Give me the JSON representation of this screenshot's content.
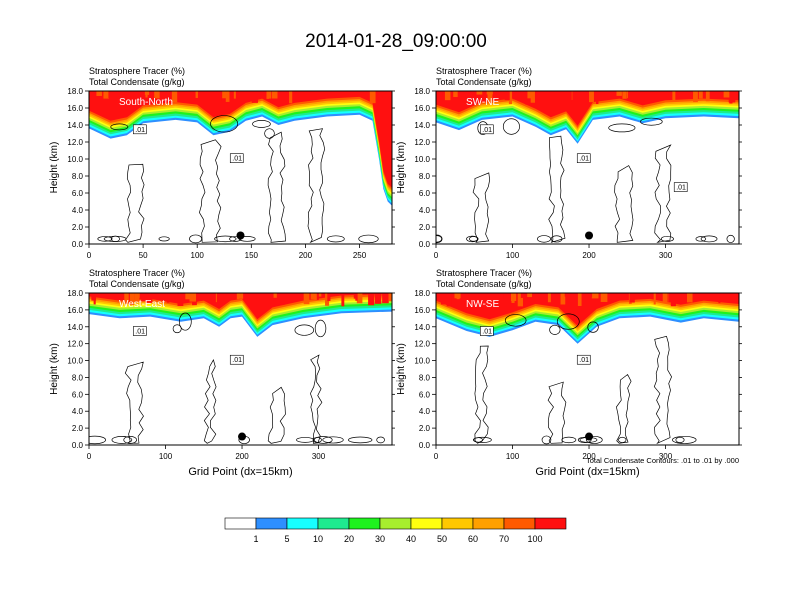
{
  "title": "2014-01-28_09:00:00",
  "colors": {
    "levels": [
      "#ffffff",
      "#2e8fff",
      "#17ffff",
      "#1eeb8f",
      "#1ef21e",
      "#a7ee2e",
      "#ffff0f",
      "#ffc800",
      "#ffa000",
      "#ff5a00",
      "#ff1010"
    ],
    "contour": "#000000"
  },
  "colorbar": {
    "labels": [
      "1",
      "5",
      "10",
      "20",
      "30",
      "40",
      "50",
      "60",
      "70",
      "100"
    ]
  },
  "chart_data": [
    {
      "type": "heatmap",
      "tracer_label": "Stratosphere Tracer   (%)",
      "condensate_label": "Total Condensate   (g/kg)",
      "panel_label": "South-North",
      "xlabel": "",
      "ylabel": "Height (km)",
      "xlim": [
        0,
        280
      ],
      "ylim": [
        0,
        18
      ],
      "xticks": [
        0,
        50,
        100,
        150,
        200,
        250
      ],
      "yticks": [
        "0.0",
        "2.0",
        "4.0",
        "6.0",
        "8.0",
        "10.0",
        "12.0",
        "14.0",
        "16.0",
        "18.0"
      ],
      "contour_labels": [
        ".01",
        ".01"
      ],
      "tropopause_km": [
        [
          0,
          13.6
        ],
        [
          20,
          12.4
        ],
        [
          35,
          12.8
        ],
        [
          50,
          14.2
        ],
        [
          80,
          14.6
        ],
        [
          100,
          14.3
        ],
        [
          115,
          12.8
        ],
        [
          130,
          13.2
        ],
        [
          145,
          14.5
        ],
        [
          160,
          15.0
        ],
        [
          175,
          14.0
        ],
        [
          190,
          14.5
        ],
        [
          220,
          15.0
        ],
        [
          250,
          15.2
        ],
        [
          262,
          14.5
        ],
        [
          268,
          10.0
        ],
        [
          272,
          6.5
        ],
        [
          276,
          5.0
        ],
        [
          280,
          4.5
        ]
      ],
      "marker": {
        "x": 140,
        "y": 1.0
      }
    },
    {
      "type": "heatmap",
      "tracer_label": "Stratosphere Tracer   (%)",
      "condensate_label": "Total Condensate   (g/kg)",
      "panel_label": "SW-NE",
      "xlabel": "",
      "ylabel": "Height (km)",
      "xlim": [
        0,
        396
      ],
      "ylim": [
        0,
        18
      ],
      "xticks": [
        0,
        100,
        200,
        300
      ],
      "yticks": [
        "0.0",
        "2.0",
        "4.0",
        "6.0",
        "8.0",
        "10.0",
        "12.0",
        "14.0",
        "16.0",
        "18.0"
      ],
      "contour_labels": [
        ".01",
        ".01",
        ".01"
      ],
      "tropopause_km": [
        [
          0,
          14.3
        ],
        [
          30,
          13.4
        ],
        [
          60,
          14.6
        ],
        [
          100,
          15.0
        ],
        [
          130,
          13.8
        ],
        [
          150,
          12.8
        ],
        [
          170,
          13.5
        ],
        [
          185,
          11.8
        ],
        [
          205,
          14.6
        ],
        [
          240,
          15.0
        ],
        [
          270,
          14.2
        ],
        [
          300,
          14.8
        ],
        [
          350,
          15.0
        ],
        [
          396,
          14.8
        ]
      ],
      "marker": {
        "x": 200,
        "y": 1.0
      }
    },
    {
      "type": "heatmap",
      "tracer_label": "Stratosphere Tracer   (%)",
      "condensate_label": "Total Condensate   (g/kg)",
      "panel_label": "West-East",
      "xlabel": "Grid Point (dx=15km)",
      "ylabel": "Height (km)",
      "xlim": [
        0,
        396
      ],
      "ylim": [
        0,
        18
      ],
      "xticks": [
        0,
        100,
        200,
        300
      ],
      "yticks": [
        "0.0",
        "2.0",
        "4.0",
        "6.0",
        "8.0",
        "10.0",
        "12.0",
        "14.0",
        "16.0",
        "18.0"
      ],
      "contour_labels": [
        ".01",
        ".01"
      ],
      "tropopause_km": [
        [
          0,
          15.5
        ],
        [
          40,
          15.0
        ],
        [
          80,
          15.2
        ],
        [
          120,
          14.6
        ],
        [
          150,
          15.0
        ],
        [
          170,
          14.0
        ],
        [
          185,
          15.0
        ],
        [
          200,
          15.2
        ],
        [
          220,
          12.8
        ],
        [
          240,
          14.2
        ],
        [
          280,
          15.0
        ],
        [
          330,
          15.6
        ],
        [
          396,
          15.8
        ]
      ],
      "marker": {
        "x": 200,
        "y": 1.0
      }
    },
    {
      "type": "heatmap",
      "tracer_label": "Stratosphere Tracer   (%)",
      "condensate_label": "Total Condensate   (g/kg)",
      "panel_label": "NW-SE",
      "xlabel": "Grid Point (dx=15km)",
      "ylabel": "Height (km)",
      "xlim": [
        0,
        396
      ],
      "ylim": [
        0,
        18
      ],
      "xticks": [
        0,
        100,
        200,
        300
      ],
      "yticks": [
        "0.0",
        "2.0",
        "4.0",
        "6.0",
        "8.0",
        "10.0",
        "12.0",
        "14.0",
        "16.0",
        "18.0"
      ],
      "contour_labels": [
        ".01",
        ".01"
      ],
      "contour_note": "Total Condensate Contours: .01 to .01 by .000",
      "tropopause_km": [
        [
          0,
          15.0
        ],
        [
          40,
          13.5
        ],
        [
          70,
          12.8
        ],
        [
          100,
          13.6
        ],
        [
          130,
          14.6
        ],
        [
          160,
          14.2
        ],
        [
          185,
          12.0
        ],
        [
          210,
          14.0
        ],
        [
          240,
          15.0
        ],
        [
          280,
          15.2
        ],
        [
          320,
          14.5
        ],
        [
          350,
          15.0
        ],
        [
          396,
          14.6
        ]
      ],
      "marker": {
        "x": 200,
        "y": 1.0
      }
    }
  ]
}
